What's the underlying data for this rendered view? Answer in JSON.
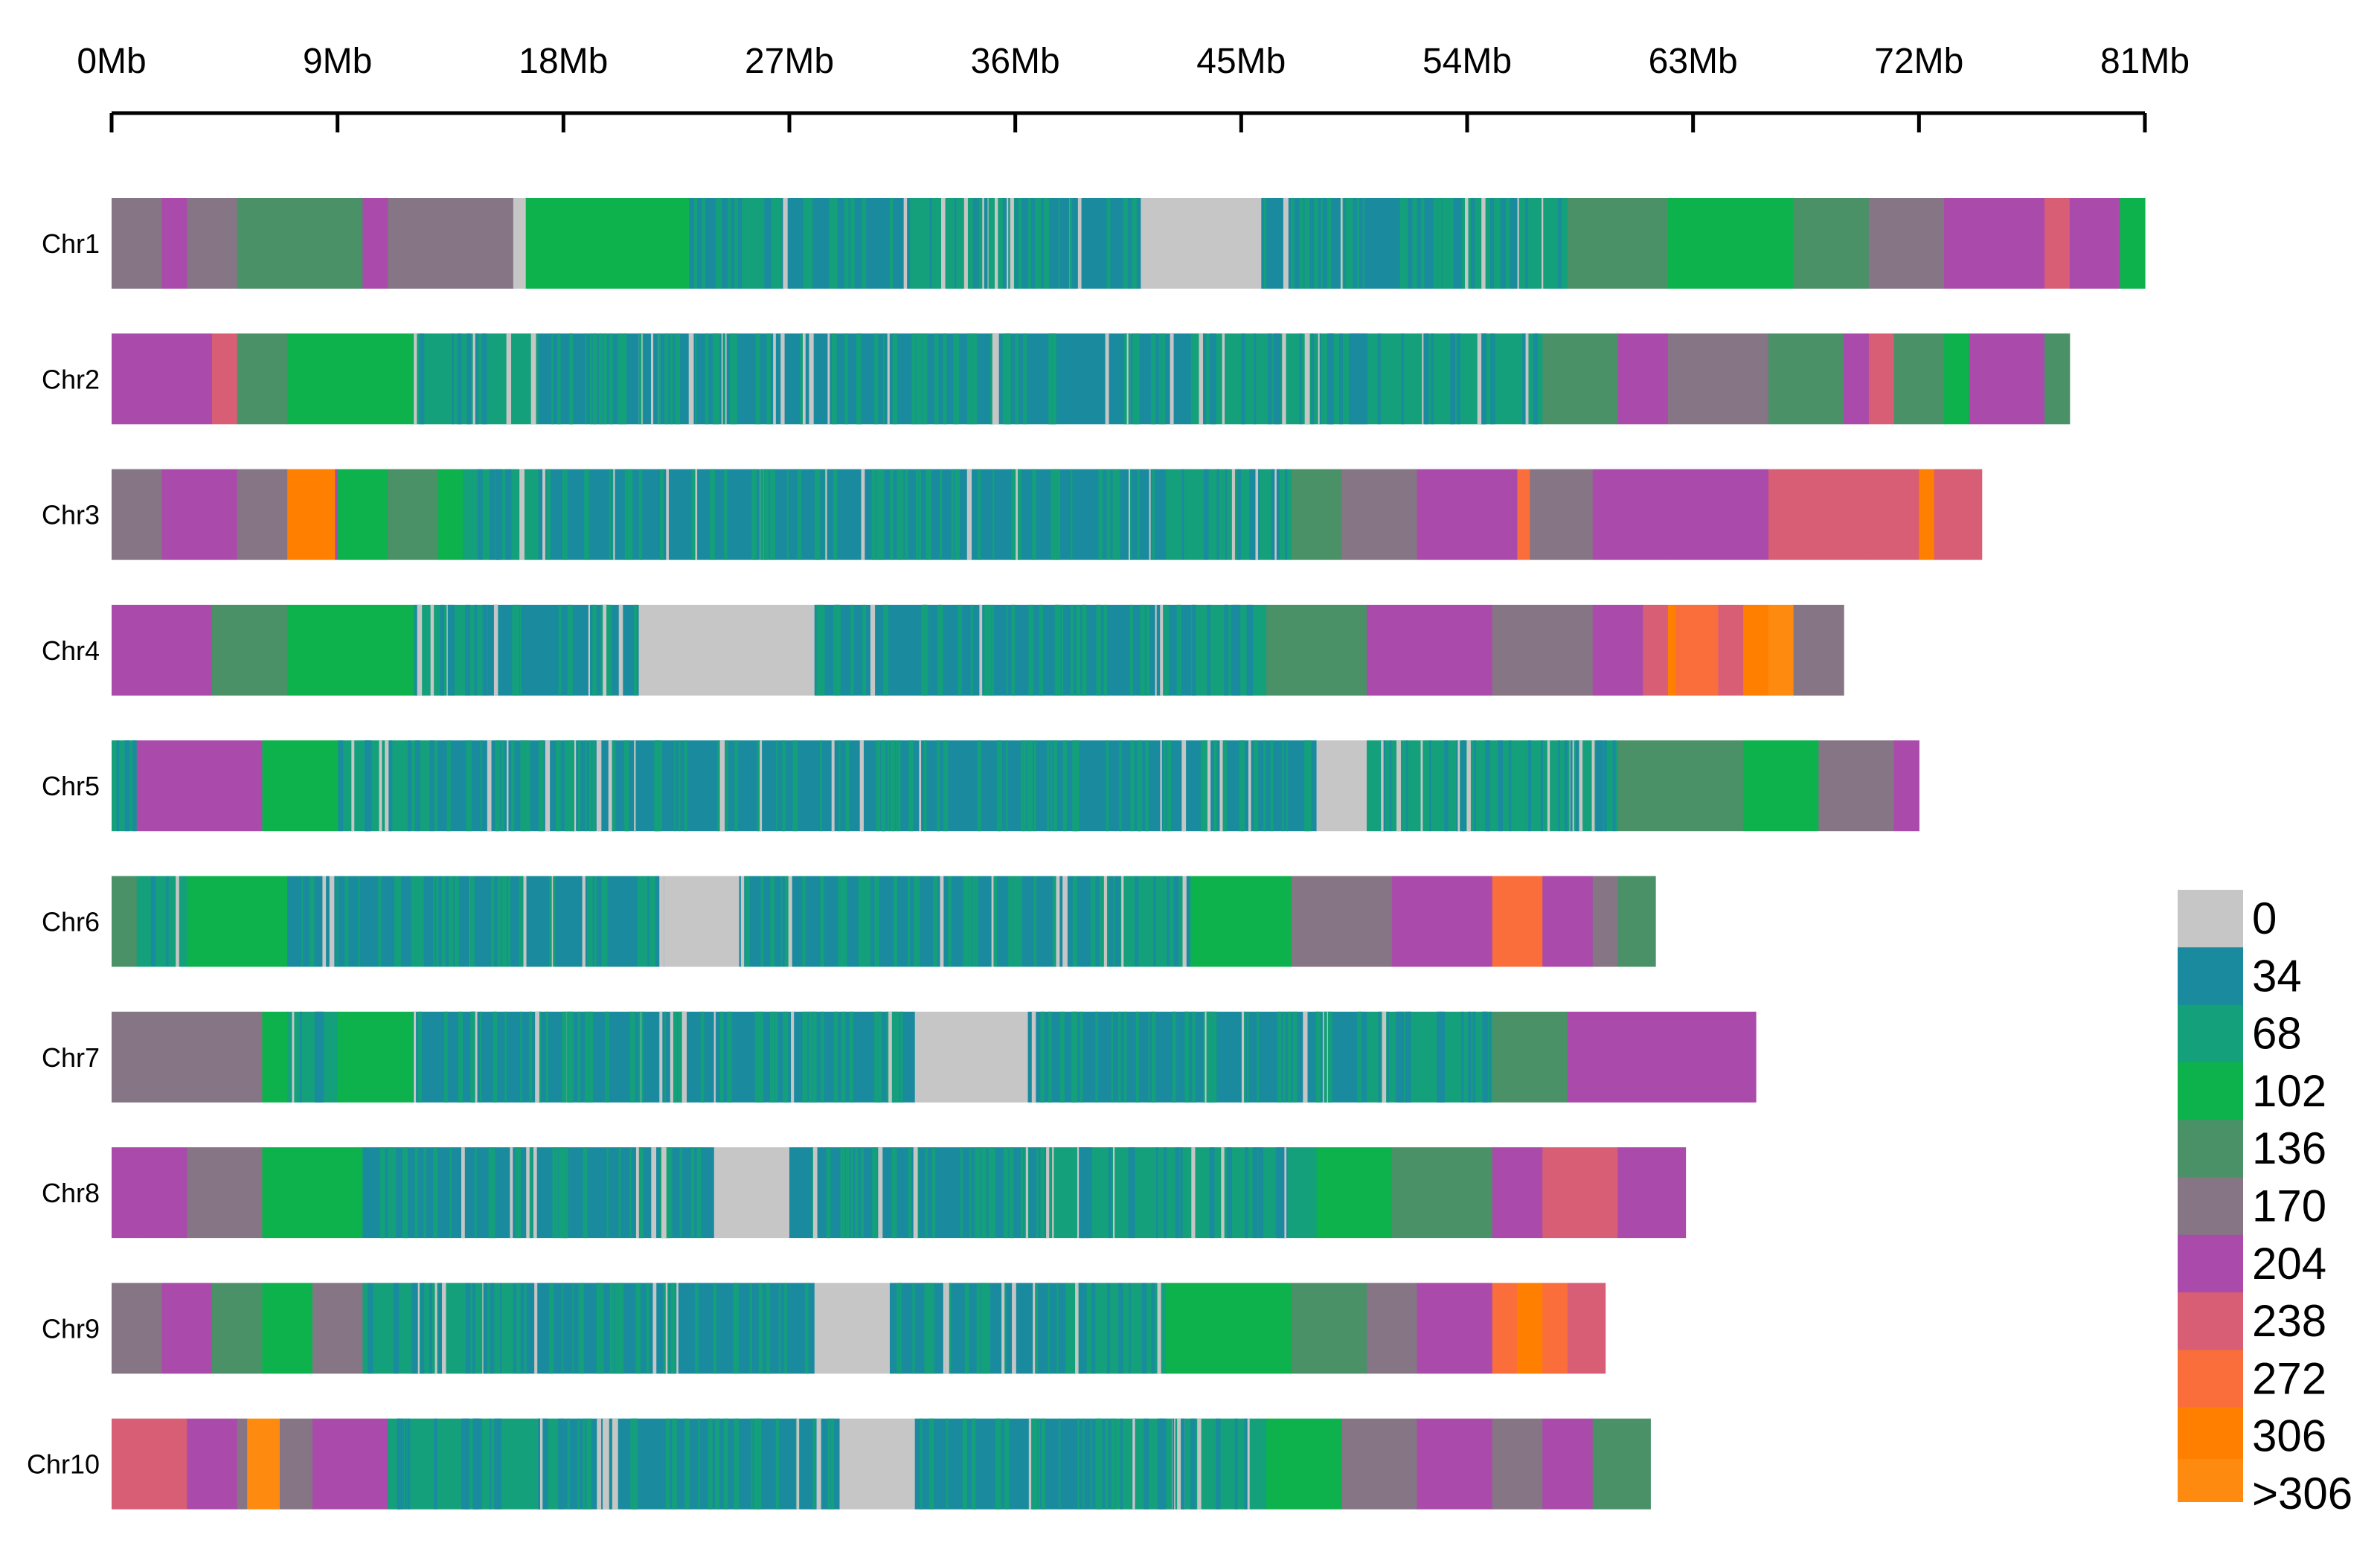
{
  "chart_data": {
    "type": "heatmap",
    "title": "",
    "xlabel": "",
    "ylabel": "",
    "x_unit": "Mb",
    "xlim": [
      0,
      81
    ],
    "x_ticks": [
      {
        "value": 0,
        "label": "0Mb"
      },
      {
        "value": 9,
        "label": "9Mb"
      },
      {
        "value": 18,
        "label": "18Mb"
      },
      {
        "value": 27,
        "label": "27Mb"
      },
      {
        "value": 36,
        "label": "36Mb"
      },
      {
        "value": 45,
        "label": "45Mb"
      },
      {
        "value": 54,
        "label": "54Mb"
      },
      {
        "value": 63,
        "label": "63Mb"
      },
      {
        "value": 72,
        "label": "72Mb"
      },
      {
        "value": 81,
        "label": "81Mb"
      }
    ],
    "legend": {
      "placement": "bottom-right",
      "bins": [
        {
          "label": "0",
          "color": "#c6c6c6"
        },
        {
          "label": "34",
          "color": "#1a8a9e"
        },
        {
          "label": "68",
          "color": "#13a07a"
        },
        {
          "label": "102",
          "color": "#0db24c"
        },
        {
          "label": "136",
          "color": "#4a9168"
        },
        {
          "label": "170",
          "color": "#857585"
        },
        {
          "label": "204",
          "color": "#aa4aaa"
        },
        {
          "label": "238",
          "color": "#d85e76"
        },
        {
          "label": "272",
          "color": "#fa6e3c"
        },
        {
          "label": "306",
          "color": "#ff8000"
        },
        {
          "label": ">306",
          "color": "#ff8a10"
        }
      ]
    },
    "chromosomes": [
      {
        "name": "Chr1",
        "length": 81.0,
        "segments": [
          [
            0,
            2,
            5
          ],
          [
            2,
            3,
            6
          ],
          [
            3,
            5,
            5
          ],
          [
            5,
            10,
            4
          ],
          [
            10,
            11,
            6
          ],
          [
            11,
            16,
            5
          ],
          [
            16,
            16.5,
            0
          ],
          [
            16.5,
            23,
            3
          ],
          [
            23,
            26,
            2
          ],
          [
            26,
            31,
            1
          ],
          [
            31,
            35.5,
            2
          ],
          [
            35.5,
            41,
            1
          ],
          [
            41,
            45.8,
            0
          ],
          [
            45.8,
            46.3,
            1
          ],
          [
            46.3,
            53,
            1
          ],
          [
            53,
            58,
            2
          ],
          [
            58,
            62,
            4
          ],
          [
            62,
            67,
            3
          ],
          [
            67,
            70,
            4
          ],
          [
            70,
            73,
            5
          ],
          [
            73,
            77,
            6
          ],
          [
            77,
            78,
            7
          ],
          [
            78,
            80,
            6
          ],
          [
            80,
            81,
            3
          ]
        ]
      },
      {
        "name": "Chr2",
        "length": 78.0,
        "segments": [
          [
            0,
            4,
            6
          ],
          [
            4,
            5,
            7
          ],
          [
            5,
            7,
            4
          ],
          [
            7,
            12,
            3
          ],
          [
            12,
            17,
            2
          ],
          [
            17,
            21,
            1
          ],
          [
            21,
            33,
            1
          ],
          [
            33,
            43,
            1
          ],
          [
            43,
            54,
            2
          ],
          [
            54,
            57,
            2
          ],
          [
            57,
            60,
            4
          ],
          [
            60,
            62,
            6
          ],
          [
            62,
            66,
            5
          ],
          [
            66,
            69,
            4
          ],
          [
            69,
            70,
            6
          ],
          [
            70,
            71,
            7
          ],
          [
            71,
            73,
            4
          ],
          [
            73,
            74,
            3
          ],
          [
            74,
            77,
            6
          ],
          [
            77,
            78,
            4
          ]
        ]
      },
      {
        "name": "Chr3",
        "length": 74.5,
        "segments": [
          [
            0,
            2,
            5
          ],
          [
            2,
            5,
            6
          ],
          [
            5,
            7,
            5
          ],
          [
            7,
            7.9,
            9
          ],
          [
            7.9,
            8.9,
            9
          ],
          [
            8.9,
            9,
            6
          ],
          [
            9,
            11,
            3
          ],
          [
            11,
            13,
            4
          ],
          [
            13,
            14,
            3
          ],
          [
            14,
            17,
            2
          ],
          [
            17,
            22,
            1
          ],
          [
            22,
            35,
            1
          ],
          [
            35,
            42,
            1
          ],
          [
            42,
            47,
            2
          ],
          [
            47,
            49,
            4
          ],
          [
            49,
            52,
            5
          ],
          [
            52,
            56,
            6
          ],
          [
            56,
            56.5,
            8
          ],
          [
            56.5,
            59,
            5
          ],
          [
            59,
            62,
            6
          ],
          [
            62,
            66,
            6
          ],
          [
            66,
            70,
            7
          ],
          [
            70,
            72,
            7
          ],
          [
            72,
            72.6,
            9
          ],
          [
            72.6,
            74.5,
            7
          ]
        ]
      },
      {
        "name": "Chr4",
        "length": 69.0,
        "segments": [
          [
            0,
            4,
            6
          ],
          [
            4,
            7,
            4
          ],
          [
            7,
            8,
            3
          ],
          [
            8,
            12,
            3
          ],
          [
            12,
            15,
            2
          ],
          [
            15,
            21,
            1
          ],
          [
            21,
            28,
            0
          ],
          [
            28,
            36,
            1
          ],
          [
            36,
            43,
            1
          ],
          [
            43,
            46,
            2
          ],
          [
            46,
            50,
            4
          ],
          [
            50,
            55,
            6
          ],
          [
            55,
            59,
            5
          ],
          [
            59,
            61,
            6
          ],
          [
            61,
            62,
            7
          ],
          [
            62,
            62.3,
            9
          ],
          [
            62.3,
            64,
            8
          ],
          [
            64,
            65,
            7
          ],
          [
            65,
            66,
            9
          ],
          [
            66,
            67,
            10
          ],
          [
            67,
            69,
            5
          ]
        ]
      },
      {
        "name": "Chr5",
        "length": 72.0,
        "segments": [
          [
            0,
            1,
            2
          ],
          [
            1,
            6,
            6
          ],
          [
            6,
            9,
            3
          ],
          [
            9,
            13,
            2
          ],
          [
            13,
            17,
            1
          ],
          [
            17,
            30,
            1
          ],
          [
            30,
            40,
            1
          ],
          [
            40,
            48,
            1
          ],
          [
            48,
            50,
            0
          ],
          [
            50,
            55,
            2
          ],
          [
            55,
            60,
            2
          ],
          [
            60,
            65,
            4
          ],
          [
            65,
            68,
            3
          ],
          [
            68,
            71,
            5
          ],
          [
            71,
            72,
            6
          ]
        ]
      },
      {
        "name": "Chr6",
        "length": 61.5,
        "segments": [
          [
            0,
            1,
            4
          ],
          [
            1,
            3,
            2
          ],
          [
            3,
            7,
            3
          ],
          [
            7,
            15,
            1
          ],
          [
            15,
            22,
            1
          ],
          [
            22,
            25,
            0
          ],
          [
            25,
            31,
            1
          ],
          [
            31,
            39,
            1
          ],
          [
            39,
            43,
            2
          ],
          [
            43,
            47,
            3
          ],
          [
            47,
            51,
            5
          ],
          [
            51,
            55,
            6
          ],
          [
            55,
            56,
            8
          ],
          [
            56,
            57,
            8
          ],
          [
            57,
            59,
            6
          ],
          [
            59,
            60,
            5
          ],
          [
            60,
            61.5,
            4
          ]
        ]
      },
      {
        "name": "Chr7",
        "length": 65.5,
        "segments": [
          [
            0,
            6,
            5
          ],
          [
            6,
            7,
            3
          ],
          [
            7,
            9,
            2
          ],
          [
            9,
            12,
            3
          ],
          [
            12,
            16,
            1
          ],
          [
            16,
            22,
            1
          ],
          [
            22,
            26,
            1
          ],
          [
            26,
            32,
            1
          ],
          [
            32,
            36.5,
            0
          ],
          [
            36.5,
            43,
            1
          ],
          [
            43,
            50,
            1
          ],
          [
            50,
            55,
            2
          ],
          [
            55,
            58,
            4
          ],
          [
            58,
            65.5,
            6
          ]
        ]
      },
      {
        "name": "Chr8",
        "length": 62.7,
        "segments": [
          [
            0,
            1,
            6
          ],
          [
            1,
            3,
            6
          ],
          [
            3,
            6,
            5
          ],
          [
            6,
            10,
            3
          ],
          [
            10,
            17,
            1
          ],
          [
            17,
            24,
            1
          ],
          [
            24,
            27,
            0
          ],
          [
            27,
            30,
            1
          ],
          [
            30,
            37,
            1
          ],
          [
            37,
            44,
            2
          ],
          [
            44,
            48,
            2
          ],
          [
            48,
            51,
            3
          ],
          [
            51,
            55,
            4
          ],
          [
            55,
            57,
            6
          ],
          [
            57,
            60,
            7
          ],
          [
            60,
            62.7,
            6
          ]
        ]
      },
      {
        "name": "Chr9",
        "length": 59.5,
        "segments": [
          [
            0,
            2,
            5
          ],
          [
            2,
            4,
            6
          ],
          [
            4,
            6,
            4
          ],
          [
            6,
            8,
            3
          ],
          [
            8,
            10,
            5
          ],
          [
            10,
            16,
            2
          ],
          [
            16,
            26,
            1
          ],
          [
            26,
            28,
            1
          ],
          [
            28,
            31,
            0
          ],
          [
            31,
            38,
            1
          ],
          [
            38,
            42,
            2
          ],
          [
            42,
            47,
            3
          ],
          [
            47,
            50,
            4
          ],
          [
            50,
            52,
            5
          ],
          [
            52,
            55,
            6
          ],
          [
            55,
            56,
            8
          ],
          [
            56,
            57,
            9
          ],
          [
            57,
            58,
            8
          ],
          [
            58,
            59.5,
            7
          ]
        ]
      },
      {
        "name": "Chr10",
        "length": 61.3,
        "segments": [
          [
            0,
            3,
            7
          ],
          [
            3,
            5,
            6
          ],
          [
            5,
            5.4,
            5
          ],
          [
            5.4,
            6.7,
            10
          ],
          [
            6.7,
            8,
            5
          ],
          [
            8,
            11,
            6
          ],
          [
            11,
            18,
            2
          ],
          [
            18,
            24,
            1
          ],
          [
            24,
            29,
            1
          ],
          [
            29,
            32,
            0
          ],
          [
            32,
            40,
            1
          ],
          [
            40,
            46,
            2
          ],
          [
            46,
            49,
            3
          ],
          [
            49,
            52,
            5
          ],
          [
            52,
            55,
            6
          ],
          [
            55,
            57,
            5
          ],
          [
            57,
            59,
            6
          ],
          [
            59,
            61.3,
            4
          ]
        ]
      }
    ]
  }
}
